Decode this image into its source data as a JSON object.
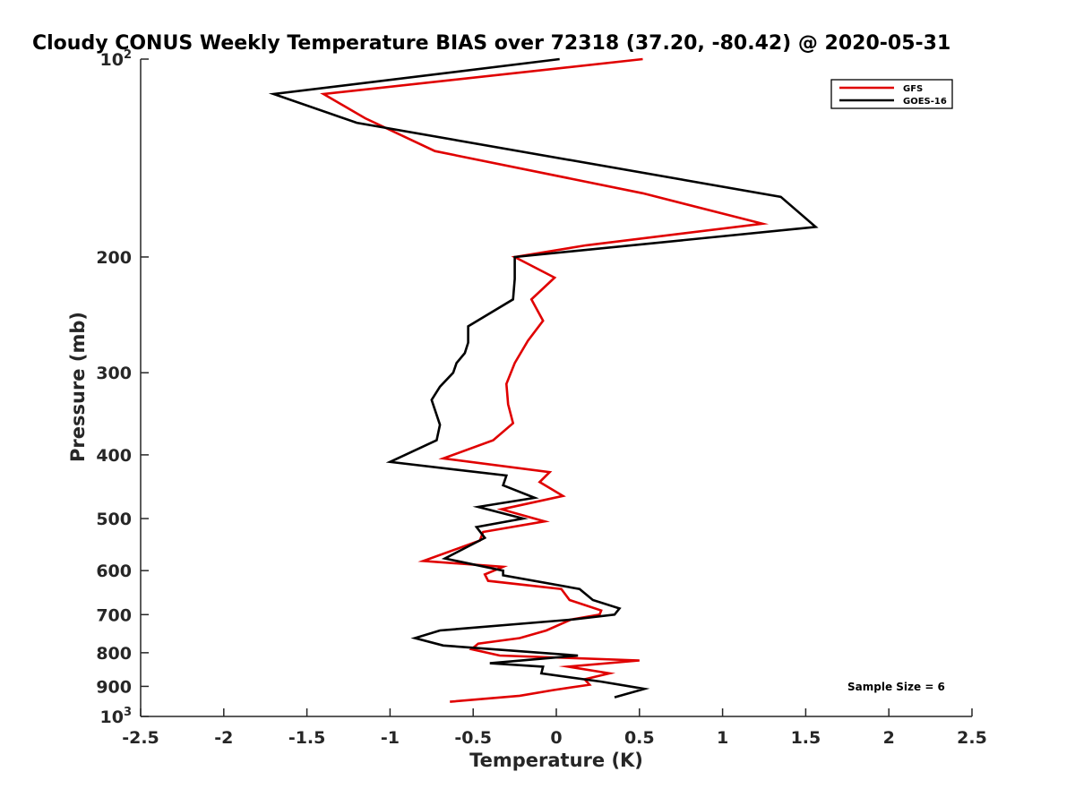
{
  "chart_data": {
    "type": "line",
    "title": "Cloudy CONUS Weekly Temperature BIAS over 72318 (37.20, -80.42) @ 2020-05-31",
    "xlabel": "Temperature (K)",
    "ylabel": "Pressure (mb)",
    "xlim": [
      -2.5,
      2.5
    ],
    "ylim": [
      100,
      1000
    ],
    "yscale": "log",
    "y_reversed": true,
    "xticks": [
      {
        "value": -2.5,
        "label": "-2.5"
      },
      {
        "value": -2,
        "label": "-2"
      },
      {
        "value": -1.5,
        "label": "-1.5"
      },
      {
        "value": -1,
        "label": "-1"
      },
      {
        "value": -0.5,
        "label": "-0.5"
      },
      {
        "value": 0,
        "label": "0"
      },
      {
        "value": 0.5,
        "label": "0.5"
      },
      {
        "value": 1,
        "label": "1"
      },
      {
        "value": 1.5,
        "label": "1.5"
      },
      {
        "value": 2,
        "label": "2"
      },
      {
        "value": 2.5,
        "label": "2.5"
      }
    ],
    "yticks": [
      {
        "value": 100,
        "base": "10",
        "exp": "2"
      },
      {
        "value": 200,
        "base": "200",
        "exp": ""
      },
      {
        "value": 300,
        "base": "300",
        "exp": ""
      },
      {
        "value": 400,
        "base": "400",
        "exp": ""
      },
      {
        "value": 500,
        "base": "500",
        "exp": ""
      },
      {
        "value": 600,
        "base": "600",
        "exp": ""
      },
      {
        "value": 700,
        "base": "700",
        "exp": ""
      },
      {
        "value": 800,
        "base": "800",
        "exp": ""
      },
      {
        "value": 900,
        "base": "900",
        "exp": ""
      },
      {
        "value": 1000,
        "base": "10",
        "exp": "3"
      }
    ],
    "legend_position": "top-right",
    "annotation": "Sample Size = 6",
    "series": [
      {
        "name": "GFS",
        "color": "#e00000",
        "x": [
          0.52,
          -1.4,
          -1.15,
          -0.73,
          0.52,
          1.24,
          0.18,
          -0.25,
          -0.01,
          -0.15,
          -0.08,
          -0.17,
          -0.25,
          -0.3,
          -0.29,
          -0.26,
          -0.38,
          -0.68,
          -0.04,
          -0.1,
          0.04,
          -0.33,
          -0.07,
          -0.44,
          -0.46,
          -0.8,
          -0.32,
          -0.43,
          -0.41,
          0.03,
          0.08,
          0.27,
          0.26,
          0.09,
          -0.06,
          -0.22,
          -0.47,
          -0.51,
          -0.34,
          0.5,
          0.07,
          0.32,
          0.17,
          0.2,
          -0.02,
          -0.22,
          -0.64
        ],
        "y": [
          100,
          113,
          123,
          138,
          160,
          178,
          192,
          200,
          215,
          232,
          250,
          268,
          290,
          312,
          335,
          358,
          380,
          405,
          425,
          440,
          462,
          484,
          505,
          524,
          540,
          580,
          592,
          608,
          622,
          640,
          665,
          690,
          700,
          712,
          740,
          760,
          775,
          790,
          808,
          822,
          840,
          860,
          878,
          895,
          912,
          930,
          950
        ]
      },
      {
        "name": "GOES-16",
        "color": "#000000",
        "x": [
          0.02,
          -1.7,
          -1.2,
          1.35,
          1.56,
          -0.25,
          -0.25,
          -0.26,
          -0.53,
          -0.53,
          -0.55,
          -0.6,
          -0.62,
          -0.7,
          -0.75,
          -0.7,
          -0.72,
          -1.0,
          -0.3,
          -0.32,
          -0.13,
          -0.47,
          -0.2,
          -0.48,
          -0.43,
          -0.67,
          -0.32,
          -0.32,
          0.14,
          0.22,
          0.38,
          0.35,
          0.1,
          -0.7,
          -0.85,
          -0.68,
          0.13,
          -0.4,
          -0.08,
          -0.09,
          0.27,
          0.53,
          0.35
        ],
        "y": [
          100,
          113,
          125,
          162,
          180,
          200,
          216,
          232,
          255,
          270,
          280,
          290,
          300,
          315,
          330,
          360,
          380,
          410,
          430,
          445,
          465,
          480,
          500,
          515,
          535,
          575,
          600,
          610,
          640,
          665,
          685,
          700,
          712,
          740,
          760,
          780,
          808,
          830,
          840,
          860,
          885,
          908,
          935
        ]
      }
    ]
  }
}
